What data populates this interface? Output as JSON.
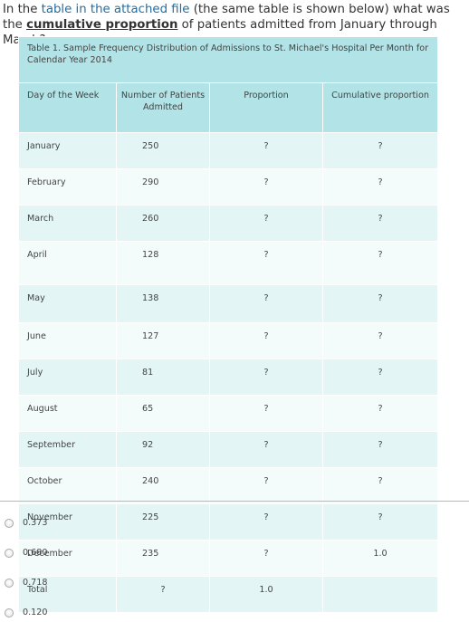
{
  "question": {
    "prefix": "In the ",
    "link": "table in the attached file",
    "middle": " (the same table is shown below) what was the ",
    "term": "cumulative proportion",
    "suffix": " of patients admitted from January through March?"
  },
  "table": {
    "caption": "Table 1. Sample Frequency Distribution of Admissions to St. Michael's Hospital Per Month for Calendar Year 2014",
    "headers": [
      "Day of the Week",
      "Number of Patients Admitted",
      "Proportion",
      "Cumulative proportion"
    ],
    "rows": [
      {
        "month": "January",
        "count": "250",
        "proportion": "?",
        "cumulative": "?"
      },
      {
        "month": "February",
        "count": "290",
        "proportion": "?",
        "cumulative": "?"
      },
      {
        "month": "March",
        "count": "260",
        "proportion": "?",
        "cumulative": "?"
      },
      {
        "month": "April",
        "count": "128",
        "proportion": "?",
        "cumulative": "?"
      },
      {
        "month": "May",
        "count": "138",
        "proportion": "?",
        "cumulative": "?"
      },
      {
        "month": "June",
        "count": "127",
        "proportion": "?",
        "cumulative": "?"
      },
      {
        "month": "July",
        "count": "81",
        "proportion": "?",
        "cumulative": "?"
      },
      {
        "month": "August",
        "count": "65",
        "proportion": "?",
        "cumulative": "?"
      },
      {
        "month": "September",
        "count": "92",
        "proportion": "?",
        "cumulative": "?"
      },
      {
        "month": "October",
        "count": "240",
        "proportion": "?",
        "cumulative": "?"
      },
      {
        "month": "November",
        "count": "225",
        "proportion": "?",
        "cumulative": "?"
      },
      {
        "month": "December",
        "count": "235",
        "proportion": "?",
        "cumulative": "1.0"
      }
    ],
    "total": {
      "label": "Total",
      "count": "?",
      "proportion": "1.0",
      "cumulative": ""
    }
  },
  "options": [
    "0.373",
    "0.680",
    "0.718",
    "0.120"
  ]
}
